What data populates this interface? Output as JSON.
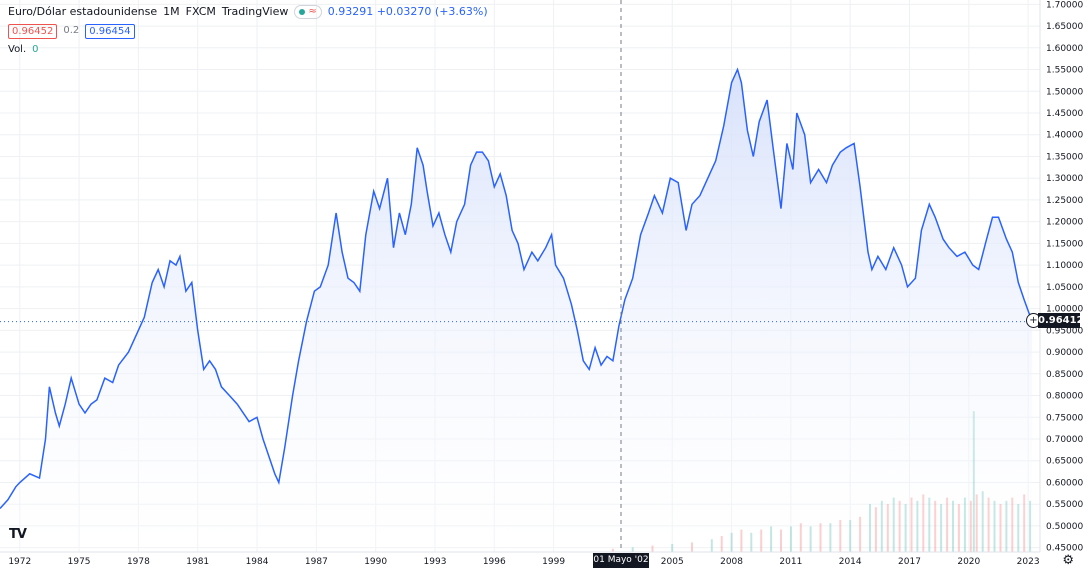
{
  "legend": {
    "symbol": "Euro/Dólar estadounidense",
    "interval": "1M",
    "exchange": "FXCM",
    "source": "TradingView",
    "ohlc_text": "0.93291 +0.03270 (+3.63%)",
    "bid": "0.96452",
    "spread": "0.2",
    "ask": "0.96454",
    "vol_label": "Vol.",
    "vol_value": "0"
  },
  "current_price_label": "0.96412",
  "crosshair_date": "01 Mayo '02",
  "colors": {
    "line": "#2962ff",
    "area_top": "#dfe7fb",
    "vol_up": "#26a69a",
    "vol_down": "#ef5350",
    "grid": "#eef0f3",
    "text": "#131722"
  },
  "chart_data": {
    "type": "area",
    "title": "",
    "xlabel": "",
    "ylabel": "",
    "y_ticks": [
      "1.70000",
      "1.65000",
      "1.60000",
      "1.55000",
      "1.50000",
      "1.45000",
      "1.40000",
      "1.35000",
      "1.30000",
      "1.25000",
      "1.20000",
      "1.15000",
      "1.10000",
      "1.05000",
      "1.00000",
      "0.95000",
      "0.90000",
      "0.85000",
      "0.80000",
      "0.75000",
      "0.70000",
      "0.65000",
      "0.60000",
      "0.55000",
      "0.50000",
      "0.45000"
    ],
    "x_ticks": [
      "1972",
      "1975",
      "1978",
      "1981",
      "1984",
      "1987",
      "1990",
      "1993",
      "1996",
      "1999",
      "2005",
      "2008",
      "2011",
      "2014",
      "2017",
      "2020",
      "2023"
    ],
    "ylim": [
      0.44,
      1.71
    ],
    "xlim": [
      1971.0,
      2023.6
    ],
    "grid": true,
    "series": [
      {
        "x": [
          1971.0,
          1971.4,
          1971.8,
          1972.0,
          1972.5,
          1973.0,
          1973.3,
          1973.5,
          1973.8,
          1974.0,
          1974.3,
          1974.6,
          1975.0,
          1975.3,
          1975.6,
          1975.9,
          1976.3,
          1976.7,
          1977.0,
          1977.5,
          1978.0,
          1978.3,
          1978.7,
          1979.0,
          1979.3,
          1979.6,
          1979.9,
          1980.1,
          1980.4,
          1980.7,
          1981.0,
          1981.3,
          1981.6,
          1981.9,
          1982.2,
          1982.6,
          1983.0,
          1983.3,
          1983.6,
          1984.0,
          1984.3,
          1984.6,
          1984.9,
          1985.1,
          1985.4,
          1985.8,
          1986.1,
          1986.5,
          1986.9,
          1987.2,
          1987.6,
          1988.0,
          1988.3,
          1988.6,
          1988.9,
          1989.2,
          1989.5,
          1989.9,
          1990.2,
          1990.6,
          1990.9,
          1991.2,
          1991.5,
          1991.8,
          1992.1,
          1992.4,
          1992.6,
          1992.9,
          1993.2,
          1993.5,
          1993.8,
          1994.1,
          1994.5,
          1994.8,
          1995.1,
          1995.4,
          1995.7,
          1996.0,
          1996.3,
          1996.6,
          1996.9,
          1997.2,
          1997.5,
          1997.9,
          1998.2,
          1998.6,
          1998.9,
          1999.1,
          1999.5,
          1999.9,
          2000.2,
          2000.5,
          2000.8,
          2001.1,
          2001.4,
          2001.7,
          2002.0,
          2002.3,
          2002.6,
          2003.0,
          2003.4,
          2003.8,
          2004.1,
          2004.5,
          2004.9,
          2005.3,
          2005.7,
          2006.0,
          2006.4,
          2006.8,
          2007.2,
          2007.6,
          2008.0,
          2008.3,
          2008.5,
          2008.8,
          2009.1,
          2009.4,
          2009.8,
          2010.1,
          2010.5,
          2010.8,
          2011.1,
          2011.3,
          2011.7,
          2012.0,
          2012.4,
          2012.8,
          2013.1,
          2013.5,
          2013.8,
          2014.2,
          2014.5,
          2014.9,
          2015.1,
          2015.4,
          2015.8,
          2016.2,
          2016.6,
          2016.9,
          2017.3,
          2017.6,
          2018.0,
          2018.3,
          2018.7,
          2019.0,
          2019.4,
          2019.8,
          2020.2,
          2020.5,
          2020.9,
          2021.2,
          2021.5,
          2021.9,
          2022.2,
          2022.5,
          2022.8,
          2023.2
        ],
        "values": [
          0.54,
          0.56,
          0.59,
          0.6,
          0.62,
          0.61,
          0.7,
          0.82,
          0.76,
          0.73,
          0.78,
          0.84,
          0.78,
          0.76,
          0.78,
          0.79,
          0.84,
          0.83,
          0.87,
          0.9,
          0.95,
          0.98,
          1.06,
          1.09,
          1.05,
          1.11,
          1.1,
          1.12,
          1.04,
          1.06,
          0.95,
          0.86,
          0.88,
          0.86,
          0.82,
          0.8,
          0.78,
          0.76,
          0.74,
          0.75,
          0.7,
          0.66,
          0.62,
          0.6,
          0.68,
          0.8,
          0.88,
          0.97,
          1.04,
          1.05,
          1.1,
          1.22,
          1.13,
          1.07,
          1.06,
          1.04,
          1.17,
          1.27,
          1.23,
          1.3,
          1.14,
          1.22,
          1.17,
          1.24,
          1.37,
          1.33,
          1.27,
          1.19,
          1.22,
          1.17,
          1.13,
          1.2,
          1.24,
          1.33,
          1.36,
          1.36,
          1.34,
          1.28,
          1.31,
          1.26,
          1.18,
          1.15,
          1.09,
          1.13,
          1.11,
          1.14,
          1.17,
          1.1,
          1.07,
          1.01,
          0.95,
          0.88,
          0.86,
          0.91,
          0.87,
          0.89,
          0.88,
          0.96,
          1.02,
          1.07,
          1.17,
          1.22,
          1.26,
          1.22,
          1.3,
          1.29,
          1.18,
          1.24,
          1.26,
          1.3,
          1.34,
          1.42,
          1.52,
          1.55,
          1.52,
          1.41,
          1.35,
          1.43,
          1.48,
          1.37,
          1.23,
          1.38,
          1.32,
          1.45,
          1.4,
          1.29,
          1.32,
          1.29,
          1.33,
          1.36,
          1.37,
          1.38,
          1.28,
          1.13,
          1.09,
          1.12,
          1.09,
          1.14,
          1.1,
          1.05,
          1.07,
          1.18,
          1.24,
          1.21,
          1.16,
          1.14,
          1.12,
          1.13,
          1.1,
          1.09,
          1.16,
          1.21,
          1.21,
          1.16,
          1.13,
          1.06,
          1.02,
          0.97
        ]
      }
    ],
    "volume": {
      "x": [
        2002.0,
        2003.0,
        2004.0,
        2005.0,
        2006.0,
        2007.0,
        2007.5,
        2008.0,
        2008.5,
        2009.0,
        2009.5,
        2010.0,
        2010.5,
        2011.0,
        2011.5,
        2012.0,
        2012.5,
        2013.0,
        2013.5,
        2014.0,
        2014.5,
        2015.0,
        2015.3,
        2015.6,
        2015.9,
        2016.2,
        2016.5,
        2016.8,
        2017.1,
        2017.4,
        2017.7,
        2018.0,
        2018.3,
        2018.6,
        2018.9,
        2019.2,
        2019.5,
        2019.8,
        2020.1,
        2020.25,
        2020.4,
        2020.7,
        2021.0,
        2021.3,
        2021.6,
        2021.9,
        2022.2,
        2022.5,
        2022.8,
        2023.1
      ],
      "values": [
        0.01,
        0.015,
        0.02,
        0.025,
        0.03,
        0.04,
        0.05,
        0.06,
        0.07,
        0.06,
        0.07,
        0.08,
        0.07,
        0.08,
        0.09,
        0.08,
        0.09,
        0.09,
        0.1,
        0.1,
        0.11,
        0.15,
        0.14,
        0.16,
        0.15,
        0.17,
        0.16,
        0.15,
        0.17,
        0.16,
        0.18,
        0.17,
        0.16,
        0.15,
        0.17,
        0.16,
        0.15,
        0.17,
        0.16,
        0.44,
        0.18,
        0.19,
        0.17,
        0.16,
        0.15,
        0.16,
        0.17,
        0.15,
        0.18,
        0.16
      ]
    }
  }
}
